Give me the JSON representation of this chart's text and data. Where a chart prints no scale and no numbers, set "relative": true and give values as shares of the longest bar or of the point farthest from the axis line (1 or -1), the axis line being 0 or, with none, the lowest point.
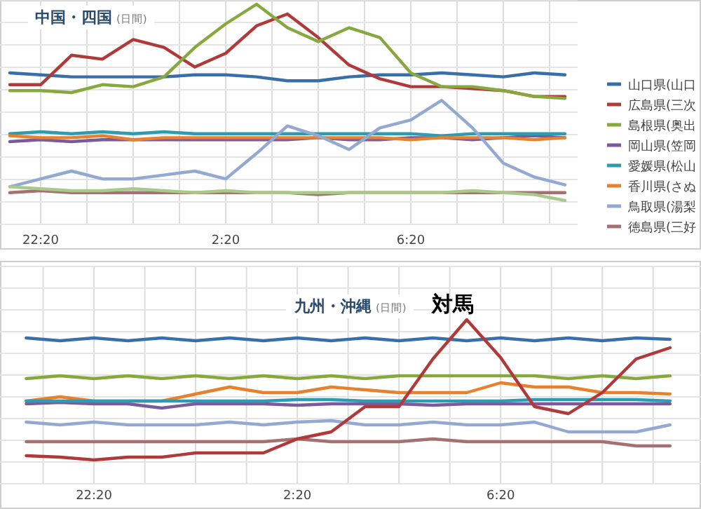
{
  "chart_data": [
    {
      "type": "line",
      "relative": true,
      "title": "中国・四国",
      "subtitle": "(日間)",
      "grid": true,
      "legend": "right",
      "categories": [
        null,
        "22:20",
        null,
        null,
        null,
        null,
        null,
        "2:20",
        null,
        null,
        null,
        null,
        null,
        "6:20",
        null,
        null,
        null,
        null,
        null
      ],
      "series": [
        {
          "name": "山口県(山口",
          "color": "#3a6ea8",
          "values": [
            0.65,
            0.64,
            0.63,
            0.63,
            0.63,
            0.63,
            0.64,
            0.64,
            0.63,
            0.61,
            0.61,
            0.63,
            0.64,
            0.64,
            0.65,
            0.64,
            0.63,
            0.65,
            0.64
          ]
        },
        {
          "name": "広島県(三次",
          "color": "#b03a3a",
          "values": [
            0.59,
            0.59,
            0.74,
            0.72,
            0.82,
            0.78,
            0.68,
            0.75,
            0.89,
            0.95,
            0.83,
            0.69,
            0.62,
            0.58,
            0.58,
            0.57,
            0.56,
            0.53,
            0.53
          ]
        },
        {
          "name": "島根県(奥出",
          "color": "#86a83e",
          "values": [
            0.56,
            0.56,
            0.55,
            0.59,
            0.58,
            0.63,
            0.78,
            0.9,
            1.0,
            0.88,
            0.81,
            0.88,
            0.83,
            0.65,
            0.58,
            0.58,
            0.56,
            0.53,
            0.52
          ]
        },
        {
          "name": "岡山県(笠岡",
          "color": "#7a5a9c",
          "values": [
            0.3,
            0.31,
            0.3,
            0.31,
            0.31,
            0.31,
            0.31,
            0.31,
            0.31,
            0.31,
            0.32,
            0.31,
            0.31,
            0.32,
            0.32,
            0.31,
            0.32,
            0.33,
            0.32
          ]
        },
        {
          "name": "愛媛県(松山",
          "color": "#2e9bb0",
          "values": [
            0.34,
            0.35,
            0.34,
            0.35,
            0.34,
            0.35,
            0.34,
            0.34,
            0.34,
            0.34,
            0.34,
            0.34,
            0.34,
            0.34,
            0.33,
            0.34,
            0.34,
            0.34,
            0.34
          ]
        },
        {
          "name": "香川県(さぬ",
          "color": "#e8812e",
          "values": [
            0.33,
            0.32,
            0.32,
            0.33,
            0.31,
            0.32,
            0.32,
            0.32,
            0.32,
            0.32,
            0.32,
            0.32,
            0.32,
            0.31,
            0.32,
            0.32,
            0.32,
            0.31,
            0.32
          ]
        },
        {
          "name": "鳥取県(湯梨",
          "color": "#93a9d2",
          "values": [
            0.07,
            0.11,
            0.15,
            0.11,
            0.11,
            0.13,
            0.15,
            0.11,
            0.24,
            0.38,
            0.33,
            0.26,
            0.37,
            0.41,
            0.51,
            0.37,
            0.19,
            0.12,
            0.08
          ]
        },
        {
          "name": "徳島県(三好",
          "color": "#a57070",
          "values": [
            0.04,
            0.05,
            0.04,
            0.04,
            0.04,
            0.04,
            0.04,
            0.04,
            0.04,
            0.04,
            0.03,
            0.04,
            0.04,
            0.04,
            0.04,
            0.04,
            0.04,
            0.04,
            0.04
          ]
        },
        {
          "color": "#a9c98a",
          "values": [
            0.07,
            0.06,
            0.05,
            0.05,
            0.06,
            0.05,
            0.04,
            0.05,
            0.04,
            0.04,
            0.04,
            0.04,
            0.04,
            0.04,
            0.04,
            0.05,
            0.04,
            0.03,
            0.0
          ]
        }
      ]
    },
    {
      "type": "line",
      "relative": true,
      "title": "九州・沖縄",
      "subtitle": "(日間)",
      "grid": true,
      "categories": [
        null,
        null,
        "22:20",
        null,
        null,
        null,
        null,
        null,
        "2:20",
        null,
        null,
        null,
        null,
        null,
        "6:20",
        null,
        null,
        null,
        null,
        null
      ],
      "annotations": [
        "対馬"
      ],
      "series": [
        {
          "color": "#3a6ea8",
          "values": [
            0.87,
            0.85,
            0.87,
            0.85,
            0.87,
            0.85,
            0.87,
            0.85,
            0.87,
            0.85,
            0.87,
            0.85,
            0.87,
            0.85,
            0.87,
            0.85,
            0.87,
            0.85,
            0.87,
            0.86
          ]
        },
        {
          "color": "#86a83e",
          "values": [
            0.58,
            0.6,
            0.58,
            0.6,
            0.58,
            0.6,
            0.58,
            0.6,
            0.58,
            0.6,
            0.58,
            0.6,
            0.6,
            0.6,
            0.6,
            0.6,
            0.58,
            0.6,
            0.58,
            0.6
          ]
        },
        {
          "color": "#e8812e",
          "values": [
            0.42,
            0.45,
            0.42,
            0.42,
            0.42,
            0.47,
            0.52,
            0.48,
            0.48,
            0.52,
            0.5,
            0.48,
            0.48,
            0.48,
            0.55,
            0.52,
            0.52,
            0.48,
            0.48,
            0.47
          ]
        },
        {
          "color": "#7a5a9c",
          "values": [
            0.4,
            0.41,
            0.4,
            0.4,
            0.37,
            0.4,
            0.4,
            0.4,
            0.39,
            0.4,
            0.4,
            0.4,
            0.39,
            0.4,
            0.4,
            0.4,
            0.4,
            0.4,
            0.4,
            0.4
          ]
        },
        {
          "color": "#2e9bb0",
          "values": [
            0.42,
            0.42,
            0.42,
            0.42,
            0.42,
            0.42,
            0.42,
            0.42,
            0.43,
            0.43,
            0.42,
            0.42,
            0.42,
            0.42,
            0.42,
            0.43,
            0.43,
            0.43,
            0.43,
            0.42
          ]
        },
        {
          "color": "#93a9d2",
          "values": [
            0.27,
            0.25,
            0.27,
            0.25,
            0.25,
            0.25,
            0.27,
            0.25,
            0.27,
            0.28,
            0.25,
            0.25,
            0.27,
            0.25,
            0.25,
            0.27,
            0.2,
            0.2,
            0.2,
            0.25
          ]
        },
        {
          "color": "#a57070",
          "values": [
            0.13,
            0.13,
            0.13,
            0.13,
            0.13,
            0.13,
            0.13,
            0.13,
            0.15,
            0.13,
            0.13,
            0.13,
            0.15,
            0.13,
            0.13,
            0.13,
            0.13,
            0.13,
            0.1,
            0.1
          ]
        },
        {
          "color": "#b03a3a",
          "values": [
            0.03,
            0.02,
            0,
            0.02,
            0.02,
            0.05,
            0.05,
            0.05,
            0.15,
            0.2,
            0.38,
            0.38,
            0.72,
            1.0,
            0.73,
            0.38,
            0.33,
            0.48,
            0.72,
            0.8
          ]
        }
      ]
    }
  ]
}
